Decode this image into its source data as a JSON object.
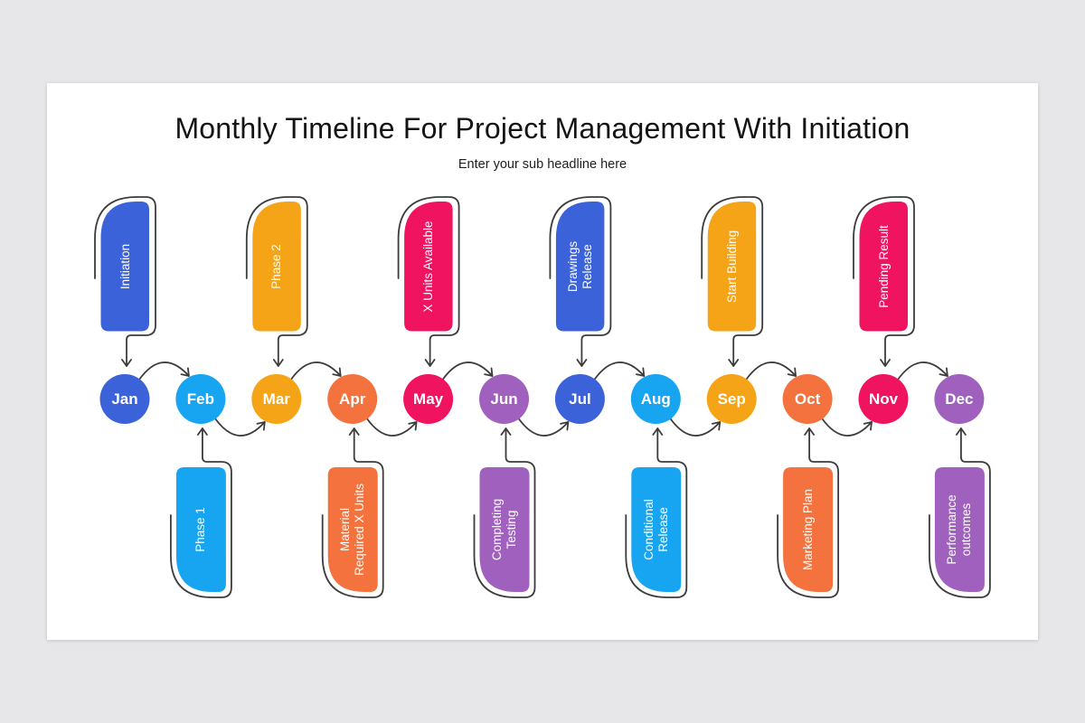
{
  "header": {
    "title": "Monthly Timeline For Project Management With Initiation",
    "subtitle": "Enter your sub headline here"
  },
  "colors": {
    "background": "#E7E6E8",
    "slide": "#FFFFFF",
    "stroke": "#3C3C3C",
    "title_text": "#141414",
    "label_text": "#FFFFFF"
  },
  "months": [
    {
      "label": "Jan",
      "color": "#3C62D9",
      "card": {
        "label": "Initiation",
        "position": "top",
        "color": "#3C62D9"
      }
    },
    {
      "label": "Feb",
      "color": "#17A5F2",
      "card": {
        "label": "Phase 1",
        "position": "bottom",
        "color": "#17A5F2"
      }
    },
    {
      "label": "Mar",
      "color": "#F5A317",
      "card": {
        "label": "Phase 2",
        "position": "top",
        "color": "#F5A317"
      }
    },
    {
      "label": "Apr",
      "color": "#F3723E",
      "card": {
        "label": "Material\nRequired X Units",
        "position": "bottom",
        "color": "#F3723E"
      }
    },
    {
      "label": "May",
      "color": "#F0135F",
      "card": {
        "label": "X Units Available",
        "position": "top",
        "color": "#F0135F"
      }
    },
    {
      "label": "Jun",
      "color": "#9F60BE",
      "card": {
        "label": "Completing\nTesting",
        "position": "bottom",
        "color": "#9F60BE"
      }
    },
    {
      "label": "Jul",
      "color": "#3C62D9",
      "card": {
        "label": "Drawings\nRelease",
        "position": "top",
        "color": "#3C62D9"
      }
    },
    {
      "label": "Aug",
      "color": "#17A5F2",
      "card": {
        "label": "Conditional\nRelease",
        "position": "bottom",
        "color": "#17A5F2"
      }
    },
    {
      "label": "Sep",
      "color": "#F5A317",
      "card": {
        "label": "Start Building",
        "position": "top",
        "color": "#F5A317"
      }
    },
    {
      "label": "Oct",
      "color": "#F3723E",
      "card": {
        "label": "Marketing Plan",
        "position": "bottom",
        "color": "#F3723E"
      }
    },
    {
      "label": "Nov",
      "color": "#F0135F",
      "card": {
        "label": "Pending Result",
        "position": "top",
        "color": "#F0135F"
      }
    },
    {
      "label": "Dec",
      "color": "#9F60BE",
      "card": {
        "label": "Performance\noutcomes",
        "position": "bottom",
        "color": "#9F60BE"
      }
    }
  ]
}
